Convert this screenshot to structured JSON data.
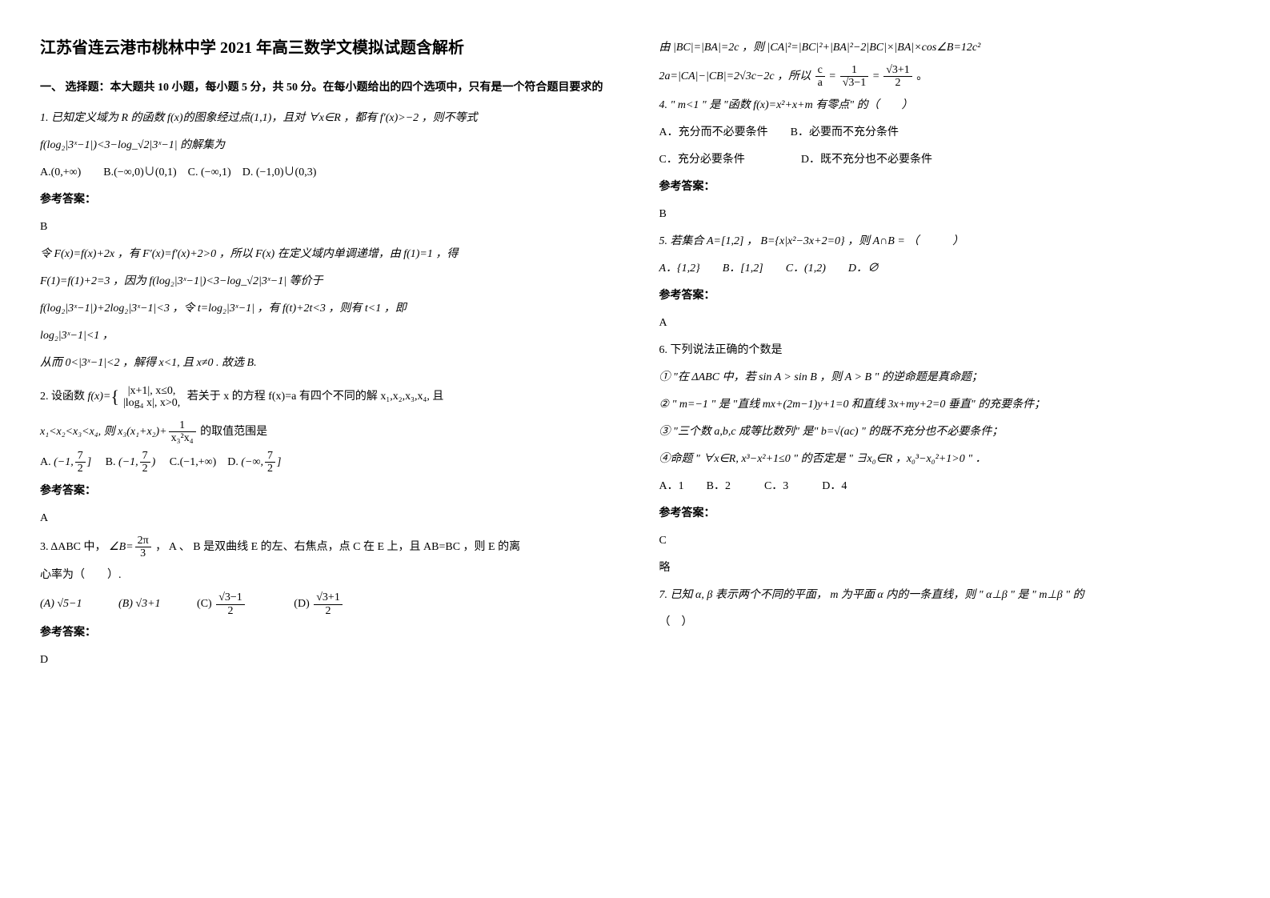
{
  "title": "江苏省连云港市桃林中学 2021 年高三数学文模拟试题含解析",
  "section1_head": "一、 选择题：本大题共 10 小题，每小题 5 分，共 50 分。在每小题给出的四个选项中，只有是一个符合题目要求的",
  "q1_line1": "1. 已知定义域为 R 的函数 f(x)的图象经过点(1,1)，且对 ∀x∈R ，都有 f′(x)>−2 ，则不等式",
  "q1_line2": "f(log₂|3ˣ−1|)<3−log_√2|3ˣ−1| 的解集为",
  "q1_opts": "A.(0,+∞)　　B.(−∞,0)∪(0,1)　C. (−∞,1)　D. (−1,0)∪(0,3)",
  "ans_label": "参考答案：",
  "q1_ans": "B",
  "q1_exp1": "令 F(x)=f(x)+2x ，有 F′(x)=f′(x)+2>0 ，所以 F(x) 在定义域内单调递增，由 f(1)=1 ，得",
  "q1_exp2": "F(1)=f(1)+2=3 ，因为 f(log₂|3ˣ−1|)<3−log_√2|3ˣ−1| 等价于",
  "q1_exp3": "f(log₂|3ˣ−1|)+2log₂|3ˣ−1|<3 ，令 t=log₂|3ˣ−1| ，有 f(t)+2t<3 ，则有 t<1 ，即",
  "q1_exp4": "log₂|3ˣ−1|<1 ，",
  "q1_exp5": "从而 0<|3ˣ−1|<2 ，解得 x<1, 且 x≠0 . 故选 B.",
  "q2_line1_a": "2. 设函数 ",
  "q2_line1_b": " 若关于 x 的方程 f(x)=a 有四个不同的解 x₁,x₂,x₃,x₄, 且",
  "q2_piece_top": "|x+1|, x≤0,",
  "q2_piece_bot": "|log₄ x|, x>0,",
  "q2_line2": "x₁<x₂<x₃<x₄, 则 ",
  "q2_frac2_num": "x₃(x₁+x₂)+",
  "q2_frac2b_num": "1",
  "q2_frac2_den": "x₃²x₄",
  "q2_line2_tail": " 的取值范围是",
  "q2_optA_pre": "A. ",
  "q2_optA_num": "7",
  "q2_optA_den": "2",
  "q2_optB_pre": "　B. ",
  "q2_optC": "　C.(−1,+∞)　D. ",
  "q2_ans": "A",
  "q3_line1_a": "3. ΔABC 中，",
  "q3_angle_num": "2π",
  "q3_angle_den": "3",
  "q3_line1_b": "， A 、 B 是双曲线 E 的左、右焦点，点 C 在 E 上，且 AB=BC ，则 E 的离",
  "q3_line2": "心率为（　　）.",
  "q3_optA": "(A)  √5−1",
  "q3_optB": "(B)  √3+1",
  "q3_optC_pre": "(C)  ",
  "q3_optC_num": "√3−1",
  "q3_optC_den": "2",
  "q3_optD_pre": "(D)  ",
  "q3_optD_num": "√3+1",
  "q3_optD_den": "2",
  "q3_ans": "D",
  "col2_exp1_a": "由 |BC|=|BA|=2c ，则 |CA|²=|BC|²+|BA|²−2|BC|×|BA|×cos∠B=12c²",
  "col2_exp2_a": "2a=|CA|−|CB|=2√3c−2c ，所以 ",
  "col2_frac_c": "c",
  "col2_frac_a": "a",
  "col2_eq": " = ",
  "col2_frac1_num": "1",
  "col2_frac1_den": "√3−1",
  "col2_frac2_num": "√3+1",
  "col2_frac2_den": "2",
  "col2_tail": " 。",
  "q4_line1": "4. \" m<1 \" 是 \"函数 f(x)=x²+x+m 有零点\" 的（　　）",
  "q4_opts1": "A．充分而不必要条件　　B．必要而不充分条件",
  "q4_opts2": "C．充分必要条件　　　　　D．既不充分也不必要条件",
  "q4_ans": "B",
  "q5_line1": "5. 若集合 A=[1,2] ， B={x|x²−3x+2=0} ，则 A∩B = （　　　）",
  "q5_opts": "A．{1,2}　　B．[1,2]　　C．(1,2)　　D．∅",
  "q5_ans": "A",
  "q6_line1": "6. 下列说法正确的个数是",
  "q6_s1": "① \"在 ΔABC 中，若 sin A > sin B ，则 A > B \" 的逆命题是真命题；",
  "q6_s2": "② \" m=−1 \" 是 \"直线 mx+(2m−1)y+1=0 和直线 3x+my+2=0 垂直\" 的充要条件；",
  "q6_s3": "③ \"三个数 a,b,c 成等比数列\" 是\" b=√(ac) \" 的既不充分也不必要条件；",
  "q6_s4": "④命题 \" ∀x∈R, x³−x²+1≤0 \" 的否定是 \" ∃x₀∈R ，x₀³−x₀²+1>0 \" ．",
  "q6_opts": "A．1　　B．2　　　C．3　　　D．4",
  "q6_ans": "C",
  "q6_brief": "略",
  "q7_line1": "7. 已知 α, β 表示两个不同的平面， m 为平面 α 内的一条直线，则 \" α⊥β \" 是 \" m⊥β \" 的",
  "q7_line2": "（　）"
}
